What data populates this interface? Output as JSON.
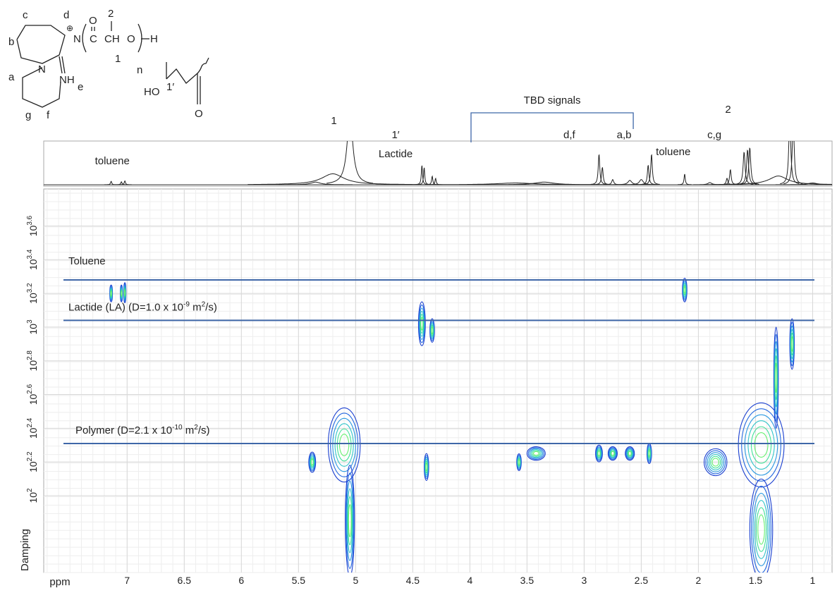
{
  "chart_data": {
    "type": "dosy",
    "x_label": "ppm",
    "y_label": "Damping",
    "xlim": [
      7.73,
      0.83
    ],
    "xticks": [
      7,
      6.5,
      6,
      5.5,
      5,
      4.5,
      4,
      3.5,
      3,
      2.5,
      2,
      1.5,
      1
    ],
    "ylim": [
      35,
      6600
    ],
    "ylog": true,
    "grid": true,
    "yticks": [
      {
        "value": 100,
        "label": "10",
        "exponent": "2"
      },
      {
        "value": 158.5,
        "label": "10",
        "exponent": "2.2"
      },
      {
        "value": 251.2,
        "label": "10",
        "exponent": "2.4"
      },
      {
        "value": 398.1,
        "label": "10",
        "exponent": "2.6"
      },
      {
        "value": 631,
        "label": "10",
        "exponent": "2.8"
      },
      {
        "value": 1000,
        "label": "10",
        "exponent": "3"
      },
      {
        "value": 1585,
        "label": "10",
        "exponent": "3.2"
      },
      {
        "value": 2512,
        "label": "10",
        "exponent": "3.4"
      },
      {
        "value": 3981,
        "label": "10",
        "exponent": "3.6"
      }
    ],
    "hlines": [
      {
        "parts": [
          "Toluene"
        ],
        "value": 1905,
        "color": "#3f67a8"
      },
      {
        "parts": [
          "Lactide (LA) (D=1.0 x 10",
          "-9",
          " m",
          "2",
          "/s)"
        ],
        "value": 1096,
        "color": "#3f67a8"
      },
      {
        "parts": [
          "Polymer (D=2.1 x 10",
          "-10",
          " m",
          "2",
          "/s)"
        ],
        "value": 204,
        "color": "#3f67a8"
      }
    ],
    "contour_colors": [
      "#1a3fd0",
      "#2468e0",
      "#2a98e0",
      "#30c4c8",
      "#40e098",
      "#66f070"
    ],
    "contours": [
      {
        "x": 7.14,
        "y": 1585,
        "width": 0.012,
        "height": 0.05
      },
      {
        "x": 7.05,
        "y": 1585,
        "width": 0.01,
        "height": 0.05
      },
      {
        "x": 7.02,
        "y": 1600,
        "width": 0.01,
        "height": 0.06
      },
      {
        "x": 2.12,
        "y": 1660,
        "width": 0.02,
        "height": 0.07
      },
      {
        "x": 4.42,
        "y": 1047,
        "width": 0.03,
        "height": 0.13
      },
      {
        "x": 4.33,
        "y": 955,
        "width": 0.02,
        "height": 0.07
      },
      {
        "x": 5.38,
        "y": 158,
        "width": 0.03,
        "height": 0.06
      },
      {
        "x": 5.1,
        "y": 200,
        "width": 0.14,
        "height": 0.22
      },
      {
        "x": 5.05,
        "y": 71,
        "width": 0.04,
        "height": 0.33
      },
      {
        "x": 4.38,
        "y": 148,
        "width": 0.02,
        "height": 0.08
      },
      {
        "x": 3.57,
        "y": 158,
        "width": 0.02,
        "height": 0.05
      },
      {
        "x": 3.42,
        "y": 178,
        "width": 0.08,
        "height": 0.04
      },
      {
        "x": 2.87,
        "y": 178,
        "width": 0.03,
        "height": 0.05
      },
      {
        "x": 2.75,
        "y": 178,
        "width": 0.04,
        "height": 0.04
      },
      {
        "x": 2.6,
        "y": 178,
        "width": 0.04,
        "height": 0.04
      },
      {
        "x": 2.43,
        "y": 178,
        "width": 0.02,
        "height": 0.06
      },
      {
        "x": 1.85,
        "y": 158,
        "width": 0.1,
        "height": 0.08
      },
      {
        "x": 1.45,
        "y": 200,
        "width": 0.2,
        "height": 0.25
      },
      {
        "x": 1.45,
        "y": 63,
        "width": 0.1,
        "height": 0.3
      },
      {
        "x": 1.32,
        "y": 501,
        "width": 0.02,
        "height": 0.3
      },
      {
        "x": 1.18,
        "y": 794,
        "width": 0.02,
        "height": 0.15
      }
    ],
    "spectrum": {
      "color": "#222222",
      "peaks": [
        {
          "x": 7.14,
          "height": 8,
          "width": 0.006
        },
        {
          "x": 7.05,
          "height": 7,
          "width": 0.006
        },
        {
          "x": 7.02,
          "height": 9,
          "width": 0.006
        },
        {
          "x": 5.35,
          "height": 6,
          "width": 0.05
        },
        {
          "x": 5.2,
          "height": 25,
          "width": 0.12
        },
        {
          "x": 5.05,
          "height": 160,
          "width": 0.03
        },
        {
          "x": 4.42,
          "height": 45,
          "width": 0.006
        },
        {
          "x": 4.4,
          "height": 40,
          "width": 0.006
        },
        {
          "x": 4.33,
          "height": 20,
          "width": 0.006
        },
        {
          "x": 4.3,
          "height": 15,
          "width": 0.006
        },
        {
          "x": 3.6,
          "height": 4,
          "width": 0.2
        },
        {
          "x": 3.35,
          "height": 6,
          "width": 0.1
        },
        {
          "x": 2.87,
          "height": 70,
          "width": 0.008
        },
        {
          "x": 2.84,
          "height": 40,
          "width": 0.008
        },
        {
          "x": 2.75,
          "height": 12,
          "width": 0.01
        },
        {
          "x": 2.6,
          "height": 10,
          "width": 0.02
        },
        {
          "x": 2.5,
          "height": 12,
          "width": 0.02
        },
        {
          "x": 2.44,
          "height": 45,
          "width": 0.008
        },
        {
          "x": 2.41,
          "height": 70,
          "width": 0.008
        },
        {
          "x": 2.12,
          "height": 25,
          "width": 0.006
        },
        {
          "x": 1.9,
          "height": 5,
          "width": 0.02
        },
        {
          "x": 1.75,
          "height": 15,
          "width": 0.008
        },
        {
          "x": 1.72,
          "height": 35,
          "width": 0.008
        },
        {
          "x": 1.6,
          "height": 75,
          "width": 0.01
        },
        {
          "x": 1.57,
          "height": 80,
          "width": 0.01
        },
        {
          "x": 1.55,
          "height": 85,
          "width": 0.01
        },
        {
          "x": 1.3,
          "height": 20,
          "width": 0.1
        },
        {
          "x": 1.2,
          "height": 160,
          "width": 0.01
        },
        {
          "x": 1.17,
          "height": 150,
          "width": 0.01
        },
        {
          "x": 1.0,
          "height": 4,
          "width": 0.05
        }
      ]
    },
    "annotations": [
      {
        "text": "toluene",
        "x": 7.13
      },
      {
        "text": "1",
        "x": 5.19
      },
      {
        "text": "1′",
        "x": 4.65
      },
      {
        "text": "Lactide",
        "x": 4.65
      },
      {
        "text": "d,f",
        "x": 3.13
      },
      {
        "text": "a,b",
        "x": 2.65
      },
      {
        "text": "toluene",
        "x": 2.22
      },
      {
        "text": "c,g",
        "x": 1.86
      },
      {
        "text": "2",
        "x": 1.74
      }
    ],
    "bracket": {
      "text": "TBD signals",
      "range": [
        3.99,
        2.57
      ]
    }
  },
  "structure": {
    "labels": [
      "c",
      "d",
      "⊕",
      "O",
      "2",
      "b",
      "N",
      "C",
      "CH",
      "O",
      "H",
      "1",
      "n",
      "N",
      "NH",
      "e",
      "a",
      "g",
      "f",
      "HO",
      "1′",
      "O"
    ]
  }
}
